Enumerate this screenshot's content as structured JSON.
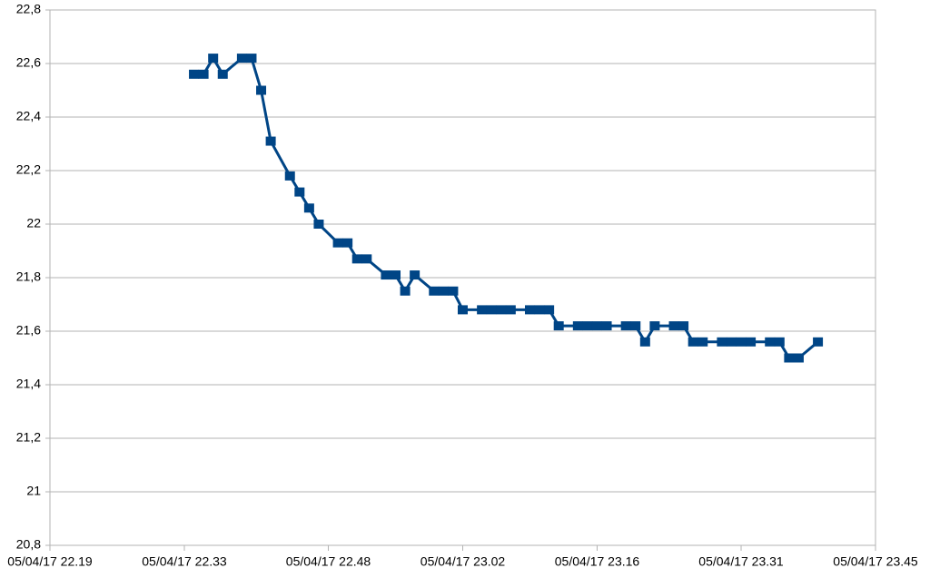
{
  "chart_data": {
    "type": "line",
    "x": [
      "05/04/17 22.34",
      "05/04/17 22.35",
      "05/04/17 22.36",
      "05/04/17 22.37",
      "05/04/17 22.39",
      "05/04/17 22.40",
      "05/04/17 22.41",
      "05/04/17 22.42",
      "05/04/17 22.44",
      "05/04/17 22.45",
      "05/04/17 22.46",
      "05/04/17 22.47",
      "05/04/17 22.49",
      "05/04/17 22.50",
      "05/04/17 22.51",
      "05/04/17 22.52",
      "05/04/17 22.54",
      "05/04/17 22.55",
      "05/04/17 22.56",
      "05/04/17 22.57",
      "05/04/17 22.59",
      "05/04/17 23.00",
      "05/04/17 23.01",
      "05/04/17 23.02",
      "05/04/17 23.04",
      "05/04/17 23.05",
      "05/04/17 23.06",
      "05/04/17 23.07",
      "05/04/17 23.09",
      "05/04/17 23.10",
      "05/04/17 23.11",
      "05/04/17 23.12",
      "05/04/17 23.14",
      "05/04/17 23.15",
      "05/04/17 23.16",
      "05/04/17 23.17",
      "05/04/17 23.19",
      "05/04/17 23.20",
      "05/04/17 23.21",
      "05/04/17 23.22",
      "05/04/17 23.24",
      "05/04/17 23.25",
      "05/04/17 23.26",
      "05/04/17 23.27",
      "05/04/17 23.29",
      "05/04/17 23.30",
      "05/04/17 23.31",
      "05/04/17 23.32",
      "05/04/17 23.34",
      "05/04/17 23.35",
      "05/04/17 23.36",
      "05/04/17 23.37",
      "05/04/17 23.39"
    ],
    "values": [
      22.56,
      22.56,
      22.62,
      22.56,
      22.62,
      22.62,
      22.5,
      22.31,
      22.18,
      22.12,
      22.06,
      22.0,
      21.93,
      21.93,
      21.87,
      21.87,
      21.81,
      21.81,
      21.75,
      21.81,
      21.75,
      21.75,
      21.75,
      21.68,
      21.68,
      21.68,
      21.68,
      21.68,
      21.68,
      21.68,
      21.68,
      21.62,
      21.62,
      21.62,
      21.62,
      21.62,
      21.62,
      21.62,
      21.56,
      21.62,
      21.62,
      21.62,
      21.56,
      21.56,
      21.56,
      21.56,
      21.56,
      21.56,
      21.56,
      21.56,
      21.5,
      21.5,
      21.56
    ],
    "color": "#004586",
    "xlim": [
      "05/04/17 22.19",
      "05/04/17 23.45"
    ],
    "xticks": [
      "05/04/17 22.19",
      "05/04/17 22.33",
      "05/04/17 22.48",
      "05/04/17 23.02",
      "05/04/17 23.16",
      "05/04/17 23.31",
      "05/04/17 23.45"
    ],
    "ylim": [
      20.8,
      22.8
    ],
    "yticks": [
      {
        "value": 20.8,
        "label": "20,8"
      },
      21,
      {
        "value": 21.2,
        "label": "21,2"
      },
      {
        "value": 21.4,
        "label": "21,4"
      },
      {
        "value": 21.6,
        "label": "21,6"
      },
      {
        "value": 21.8,
        "label": "21,8"
      },
      22,
      {
        "value": 22.2,
        "label": "22,2"
      },
      {
        "value": 22.4,
        "label": "22,4"
      },
      {
        "value": 22.6,
        "label": "22,6"
      },
      {
        "value": 22.8,
        "label": "22,8"
      }
    ],
    "grid": true
  }
}
